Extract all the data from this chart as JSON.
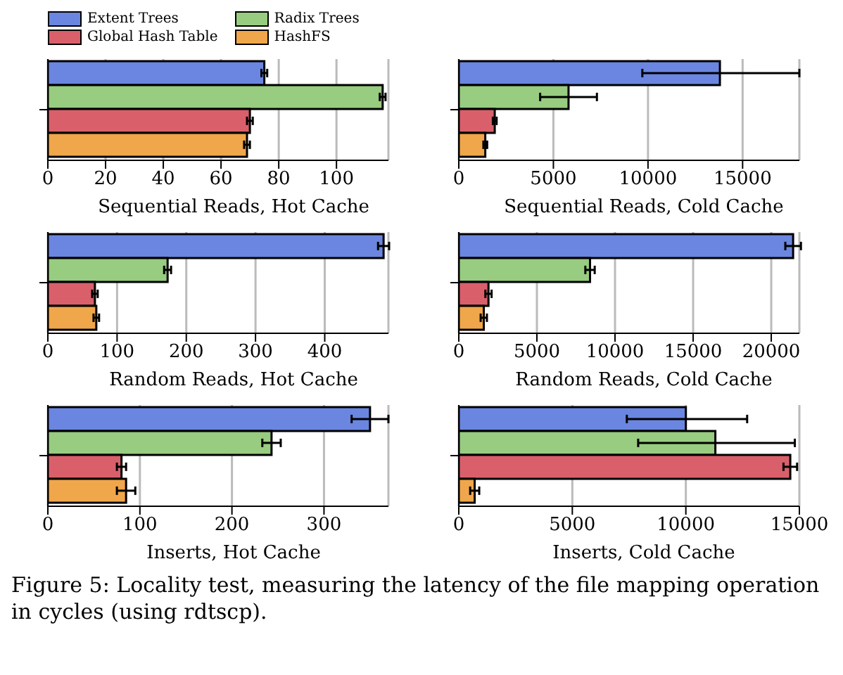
{
  "chart_data": [
    {
      "type": "bar",
      "orientation": "horizontal",
      "xlabel": "Sequential Reads, Hot Cache",
      "categories": [
        null
      ],
      "xlim": [
        0,
        118
      ],
      "xticks": [
        0,
        20,
        40,
        60,
        80,
        100
      ],
      "grid": "x",
      "legend": "top left",
      "series": [
        {
          "name": "Extent Trees",
          "color": "#6b86e0",
          "values": [
            75
          ],
          "errors": [
            1
          ]
        },
        {
          "name": "Radix Trees",
          "color": "#98cc80",
          "values": [
            116
          ],
          "errors": [
            1
          ]
        },
        {
          "name": "Global Hash Table",
          "color": "#d9606b",
          "values": [
            70
          ],
          "errors": [
            1
          ]
        },
        {
          "name": "HashFS",
          "color": "#f0a64a",
          "values": [
            69
          ],
          "errors": [
            1
          ]
        }
      ]
    },
    {
      "type": "bar",
      "orientation": "horizontal",
      "xlabel": "Sequential Reads, Cold Cache",
      "categories": [
        null
      ],
      "xlim": [
        0,
        18000
      ],
      "xticks": [
        0,
        5000,
        10000,
        15000
      ],
      "grid": "x",
      "series": [
        {
          "color": "#6b86e0",
          "values": [
            13800
          ],
          "errors": [
            [
              9700,
              18000
            ]
          ]
        },
        {
          "color": "#98cc80",
          "values": [
            5800
          ],
          "errors": [
            1500
          ]
        },
        {
          "color": "#d9606b",
          "values": [
            1900
          ],
          "errors": [
            100
          ]
        },
        {
          "color": "#f0a64a",
          "values": [
            1400
          ],
          "errors": [
            100
          ]
        }
      ]
    },
    {
      "type": "bar",
      "orientation": "horizontal",
      "xlabel": "Random Reads, Hot Cache",
      "categories": [
        null
      ],
      "xlim": [
        0,
        492
      ],
      "xticks": [
        0,
        100,
        200,
        300,
        400
      ],
      "grid": "x",
      "series": [
        {
          "color": "#6b86e0",
          "values": [
            485
          ],
          "errors": [
            8
          ]
        },
        {
          "color": "#98cc80",
          "values": [
            173
          ],
          "errors": [
            5
          ]
        },
        {
          "color": "#d9606b",
          "values": [
            68
          ],
          "errors": [
            4
          ]
        },
        {
          "color": "#f0a64a",
          "values": [
            70
          ],
          "errors": [
            4
          ]
        }
      ]
    },
    {
      "type": "bar",
      "orientation": "horizontal",
      "xlabel": "Random Reads, Cold Cache",
      "categories": [
        null
      ],
      "xlim": [
        0,
        21800
      ],
      "xticks": [
        0,
        5000,
        10000,
        15000,
        20000
      ],
      "grid": "x",
      "series": [
        {
          "color": "#6b86e0",
          "values": [
            21400
          ],
          "errors": [
            500
          ]
        },
        {
          "color": "#98cc80",
          "values": [
            8400
          ],
          "errors": [
            300
          ]
        },
        {
          "color": "#d9606b",
          "values": [
            1900
          ],
          "errors": [
            200
          ]
        },
        {
          "color": "#f0a64a",
          "values": [
            1600
          ],
          "errors": [
            200
          ]
        }
      ]
    },
    {
      "type": "bar",
      "orientation": "horizontal",
      "xlabel": "Inserts, Hot Cache",
      "categories": [
        null
      ],
      "xlim": [
        0,
        370
      ],
      "xticks": [
        0,
        100,
        200,
        300
      ],
      "grid": "x",
      "series": [
        {
          "color": "#6b86e0",
          "values": [
            350
          ],
          "errors": [
            20
          ]
        },
        {
          "color": "#98cc80",
          "values": [
            243
          ],
          "errors": [
            10
          ]
        },
        {
          "color": "#d9606b",
          "values": [
            80
          ],
          "errors": [
            5
          ]
        },
        {
          "color": "#f0a64a",
          "values": [
            85
          ],
          "errors": [
            10
          ]
        }
      ]
    },
    {
      "type": "bar",
      "orientation": "horizontal",
      "xlabel": "Inserts, Cold Cache",
      "categories": [
        null
      ],
      "xlim": [
        0,
        15000
      ],
      "xticks": [
        0,
        5000,
        10000,
        15000
      ],
      "grid": "x",
      "annotations": [
        "Figure 5: Locality test, measuring the latency of the file mapping operation in cycles (using rdtscp)."
      ],
      "series": [
        {
          "color": "#6b86e0",
          "values": [
            10000
          ],
          "errors": [
            [
              7400,
              12700
            ]
          ]
        },
        {
          "color": "#98cc80",
          "values": [
            11300
          ],
          "errors": [
            [
              7900,
              14800
            ]
          ]
        },
        {
          "color": "#d9606b",
          "values": [
            14600
          ],
          "errors": [
            300
          ]
        },
        {
          "color": "#f0a64a",
          "values": [
            700
          ],
          "errors": [
            200
          ]
        }
      ]
    }
  ]
}
